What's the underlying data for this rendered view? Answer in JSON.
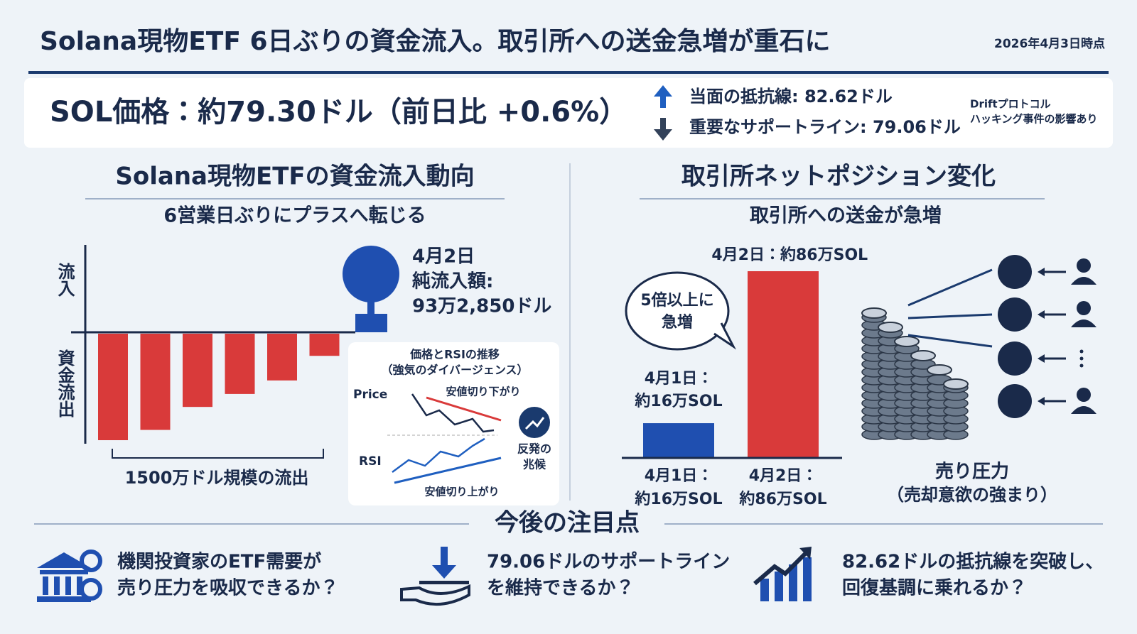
{
  "header": {
    "title": "Solana現物ETF 6日ぶりの資金流入。取引所への送金急増が重石に",
    "date": "2026年4月3日時点"
  },
  "price_box": {
    "price": "SOL価格：約79.30ドル（前日比 +0.6%）",
    "resistance": "当面の抵抗線: 82.62ドル",
    "support": "重要なサポートライン: 79.06ドル",
    "note": [
      "Driftプロトコル",
      "ハッキング事件の影響あり"
    ]
  },
  "chart_data": [
    {
      "type": "bar",
      "title": "Solana現物ETFの資金流入動向",
      "subtitle": "6営業日ぶりにプラスへ転じる",
      "categories": [
        null,
        null,
        null,
        null,
        null,
        null
      ],
      "values": [
        -394,
        -356,
        -271,
        -223,
        -173,
        -82
      ],
      "color": "#d93a3a",
      "y_label_positive": "流入",
      "y_label_negative": "資金流出",
      "brace_label": "1500万ドル規模の流出",
      "annotation": [
        "4月2日",
        "純流入額:",
        "93万2,850ドル"
      ],
      "inset": {
        "title": [
          "価格とRSIの推移",
          "（強気のダイバージェンス）"
        ],
        "price_label": "Price",
        "price_note": "安値切り下がり",
        "rsi_label": "RSI",
        "rsi_note": "安値切り上がり",
        "signal": [
          "反発の",
          "兆候"
        ]
      }
    },
    {
      "type": "bar",
      "title": "取引所ネットポジション変化",
      "subtitle": "取引所への送金が急増",
      "categories": [
        "4月1日：",
        "4月2日："
      ],
      "values": [
        16,
        86
      ],
      "value_labels": [
        "約16万SOL",
        "約86万SOL"
      ],
      "colors": [
        "#1f4fb0",
        "#d93a3a"
      ],
      "callout": [
        "5倍以上に",
        "急増"
      ],
      "side_label": [
        "売り圧力",
        "（売却意欲の強まり）"
      ]
    }
  ],
  "outlook": {
    "title": "今後の注目点",
    "items": [
      [
        "機関投資家のETF需要が",
        "売り圧力を吸収できるか？"
      ],
      [
        "79.06ドルのサポートライン",
        "を維持できるか？"
      ],
      [
        "82.62ドルの抵抗線を突破し、",
        "回復基調に乗れるか？"
      ]
    ]
  }
}
